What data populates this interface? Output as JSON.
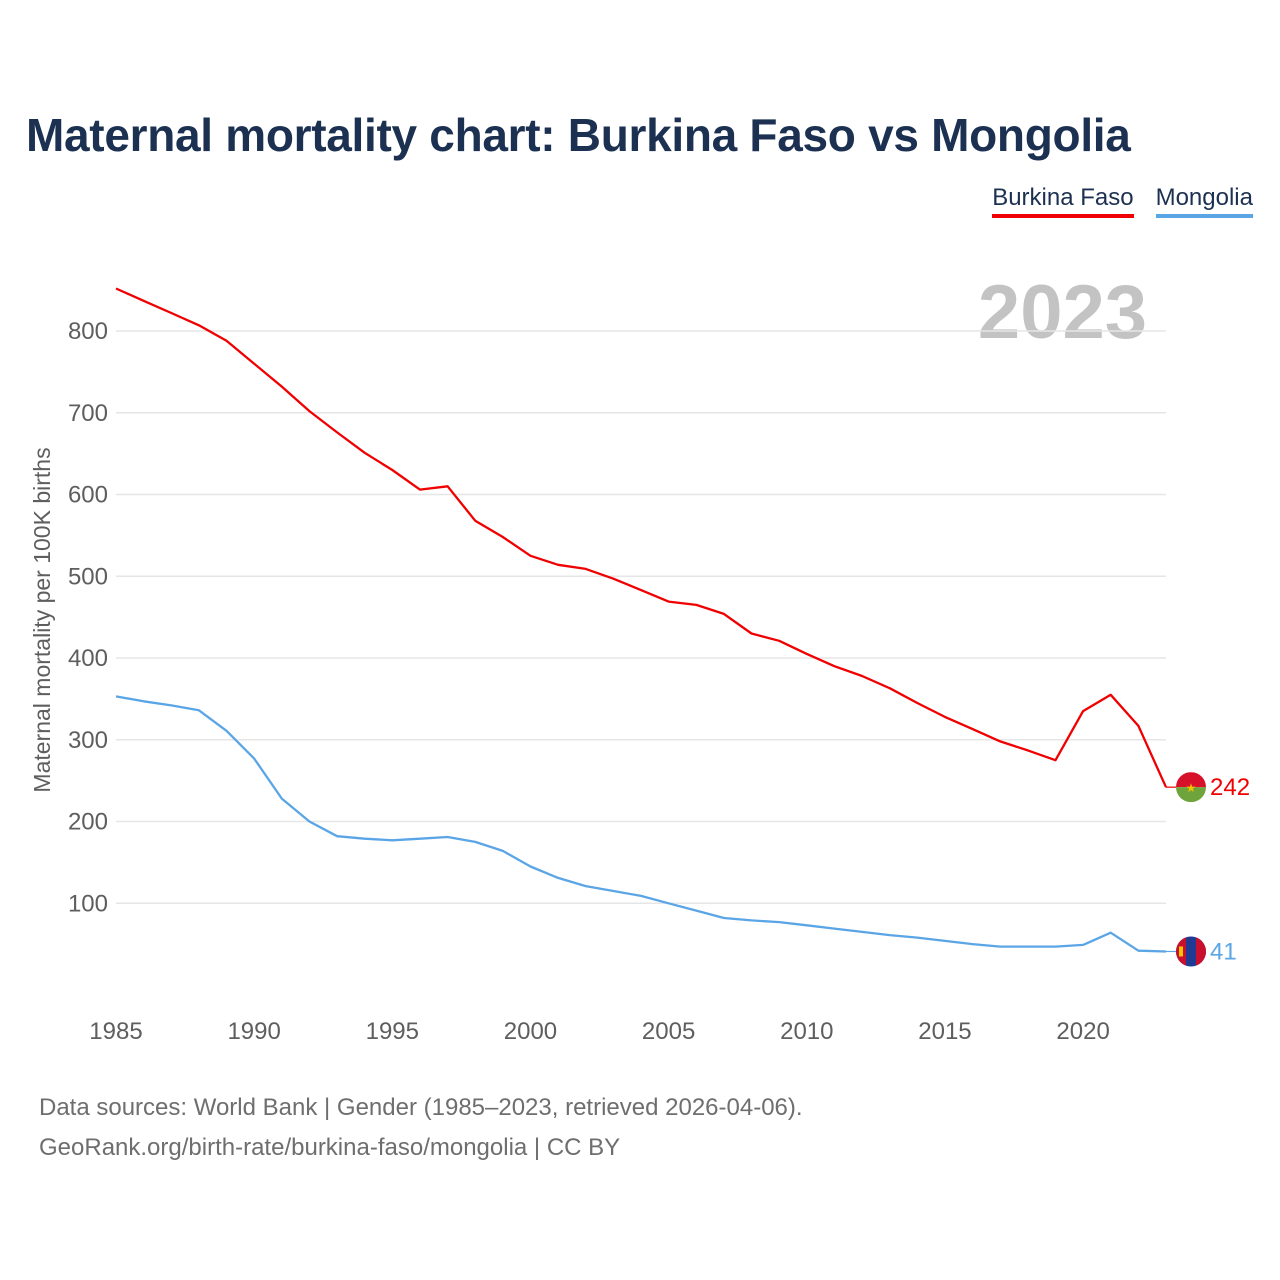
{
  "title": "Maternal mortality chart: Burkina Faso vs Mongolia",
  "legend": {
    "burkina": "Burkina Faso",
    "mongolia": "Mongolia"
  },
  "current_year": "2023",
  "footer": {
    "line1": "Data sources: World Bank | Gender (1985–2023, retrieved 2026-04-06).",
    "line2": "GeoRank.org/birth-rate/burkina-faso/mongolia | CC BY"
  },
  "colors": {
    "burkina": "#f00000",
    "mongolia": "#5aa5e6",
    "title": "#1c3151",
    "grid": "#e6e6e6"
  },
  "chart_data": {
    "type": "line",
    "title": "Maternal mortality chart: Burkina Faso vs Mongolia",
    "xlabel": "",
    "ylabel": "Maternal mortality per 100K births",
    "x": [
      1985,
      1986,
      1987,
      1988,
      1989,
      1990,
      1991,
      1992,
      1993,
      1994,
      1995,
      1996,
      1997,
      1998,
      1999,
      2000,
      2001,
      2002,
      2003,
      2004,
      2005,
      2006,
      2007,
      2008,
      2009,
      2010,
      2011,
      2012,
      2013,
      2014,
      2015,
      2016,
      2017,
      2018,
      2019,
      2020,
      2021,
      2022,
      2023
    ],
    "xticks": [
      1985,
      1990,
      1995,
      2000,
      2005,
      2010,
      2015,
      2020
    ],
    "yticks": [
      100,
      200,
      300,
      400,
      500,
      600,
      700,
      800
    ],
    "xlim": [
      1985,
      2023
    ],
    "ylim": [
      0,
      900
    ],
    "grid": true,
    "legend_position": "top-right",
    "series": [
      {
        "name": "Burkina Faso",
        "color": "#f00000",
        "end_label": "242",
        "values": [
          852,
          837,
          822,
          807,
          788,
          760,
          732,
          702,
          676,
          651,
          630,
          606,
          610,
          568,
          548,
          525,
          514,
          509,
          497,
          483,
          469,
          465,
          454,
          430,
          421,
          405,
          390,
          378,
          363,
          345,
          328,
          313,
          298,
          287,
          275,
          335,
          355,
          317,
          242
        ]
      },
      {
        "name": "Mongolia",
        "color": "#5aa5e6",
        "end_label": "41",
        "values": [
          353,
          347,
          342,
          336,
          311,
          277,
          228,
          200,
          182,
          179,
          177,
          179,
          181,
          175,
          164,
          145,
          131,
          121,
          115,
          109,
          100,
          91,
          82,
          79,
          77,
          73,
          69,
          65,
          61,
          58,
          54,
          50,
          47,
          47,
          47,
          49,
          64,
          42,
          41
        ]
      }
    ]
  }
}
